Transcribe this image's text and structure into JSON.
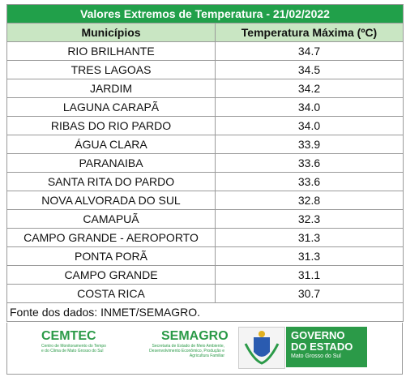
{
  "table": {
    "title": "Valores Extremos de Temperatura  - 21/02/2022",
    "header": [
      "Municípios",
      "Temperatura Máxima (ºC)"
    ],
    "rows": [
      [
        "RIO BRILHANTE",
        "34.7"
      ],
      [
        "TRES LAGOAS",
        "34.5"
      ],
      [
        "JARDIM",
        "34.2"
      ],
      [
        "LAGUNA CARAPÃ",
        "34.0"
      ],
      [
        "RIBAS DO RIO PARDO",
        "34.0"
      ],
      [
        "ÁGUA CLARA",
        "33.9"
      ],
      [
        "PARANAIBA",
        "33.6"
      ],
      [
        "SANTA RITA DO PARDO",
        "33.6"
      ],
      [
        "NOVA ALVORADA DO SUL",
        "32.8"
      ],
      [
        "CAMAPUÃ",
        "32.3"
      ],
      [
        "CAMPO GRANDE - AEROPORTO",
        "31.3"
      ],
      [
        "PONTA PORÃ",
        "31.3"
      ],
      [
        "CAMPO GRANDE",
        "31.1"
      ],
      [
        "COSTA RICA",
        "30.7"
      ]
    ],
    "source": "Fonte dos dados: INMET/SEMAGRO."
  },
  "logos": {
    "cemtec": "CEMTEC",
    "cemtec_sub": "Centro de Monitoramento do Tempo e do Clima de Mato Grosso do Sul",
    "semagro": "SEMAGRO",
    "semagro_sub": "Secretaria de Estado de Meio Ambiente, Desenvolvimento Econômico, Produção e Agricultura Familiar",
    "governo_1": "GOVERNO",
    "governo_2": "DO ESTADO",
    "governo_3": "Mato Grosso do Sul"
  }
}
